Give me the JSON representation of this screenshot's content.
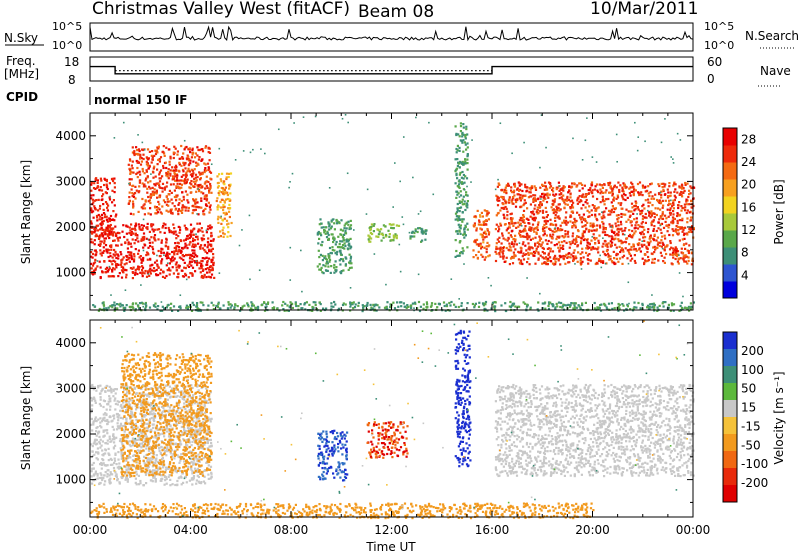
{
  "header": {
    "station": "Christmas Valley West (fitACF)",
    "beam": "Beam 08",
    "date": "10/Mar/2011"
  },
  "colors": {
    "power_scale": [
      "#0000dd",
      "#2e55d0",
      "#3d8f77",
      "#5aa84a",
      "#a8c93a",
      "#f2d320",
      "#f7a020",
      "#f46a12",
      "#ee2a0a",
      "#e80000"
    ],
    "velocity_scale": [
      "#1a2fd0",
      "#2f6fc4",
      "#3d8f77",
      "#5cb83c",
      "#c8c8c8",
      "#f5c23a",
      "#f29a1e",
      "#f06812",
      "#e82a0a",
      "#e00000"
    ],
    "ground_scatter": "#c8c8c8"
  },
  "chart_data": [
    {
      "panel": "noise",
      "type": "line",
      "left_label": "N.Sky",
      "right_label": "N.Search",
      "left_ticks": [
        "10^5",
        "10^0"
      ],
      "right_ticks": [
        "10^5",
        "10^0"
      ]
    },
    {
      "panel": "frequency",
      "type": "line",
      "left_label": [
        "Freq.",
        "[MHz]"
      ],
      "right_label": "Nave",
      "left_ticks": [
        18,
        8
      ],
      "right_ticks": [
        60,
        0
      ],
      "series": [
        {
          "name": "Freq.",
          "x": [
            "00:00",
            "01:00",
            "01:00",
            "16:00",
            "16:00",
            "24:00"
          ],
          "values": [
            14,
            14,
            11,
            11,
            14,
            14
          ]
        },
        {
          "name": "Nave",
          "x": [
            "01:00",
            "16:00"
          ],
          "values": [
            26,
            26
          ]
        }
      ]
    },
    {
      "panel": "cpid",
      "label": "CPID",
      "text": "normal 150 IF"
    },
    {
      "panel": "power",
      "type": "heatmap",
      "ylabel": "Slant Range [km]",
      "yticks": [
        1000,
        2000,
        3000,
        4000
      ],
      "ylim": [
        180,
        4500
      ],
      "colorbar": {
        "label": "Power [dB]",
        "ticks": [
          4,
          8,
          12,
          16,
          20,
          24,
          28
        ],
        "range": [
          0,
          30
        ]
      },
      "regions": [
        {
          "t": [
            0.0,
            1.0
          ],
          "r": [
            1800,
            3100
          ],
          "level": 28
        },
        {
          "t": [
            0.0,
            4.9
          ],
          "r": [
            900,
            2100
          ],
          "level": 28
        },
        {
          "t": [
            1.5,
            4.8
          ],
          "r": [
            2300,
            3800
          ],
          "level": 26
        },
        {
          "t": [
            5.0,
            5.6
          ],
          "r": [
            1800,
            3200
          ],
          "level": 20
        },
        {
          "t": [
            9.0,
            10.4
          ],
          "r": [
            1000,
            2200
          ],
          "level": 8
        },
        {
          "t": [
            11.0,
            12.3
          ],
          "r": [
            1700,
            2100
          ],
          "level": 12
        },
        {
          "t": [
            12.6,
            13.4
          ],
          "r": [
            1700,
            2000
          ],
          "level": 8
        },
        {
          "t": [
            14.5,
            15.0
          ],
          "r": [
            1300,
            4300
          ],
          "level": 8
        },
        {
          "t": [
            15.2,
            15.9
          ],
          "r": [
            1300,
            2400
          ],
          "level": 24
        },
        {
          "t": [
            16.1,
            24.0
          ],
          "r": [
            1200,
            3000
          ],
          "level": 26
        },
        {
          "t": [
            0.0,
            24.0
          ],
          "r": [
            180,
            380
          ],
          "level": 8
        }
      ]
    },
    {
      "panel": "velocity",
      "type": "heatmap",
      "ylabel": "Slant Range [km]",
      "xlabel": "Time UT",
      "xticks": [
        "00:00",
        "04:00",
        "08:00",
        "12:00",
        "16:00",
        "20:00",
        "00:00"
      ],
      "yticks": [
        1000,
        2000,
        3000,
        4000
      ],
      "ylim": [
        180,
        4500
      ],
      "colorbar": {
        "label": "Velocity [m s⁻¹]",
        "ticks": [
          200,
          100,
          50,
          15,
          -15,
          -50,
          -100,
          -200
        ]
      },
      "regions": [
        {
          "t": [
            0.0,
            4.8
          ],
          "r": [
            900,
            3100
          ],
          "value": 0
        },
        {
          "t": [
            1.2,
            4.8
          ],
          "r": [
            1100,
            3800
          ],
          "value": -60
        },
        {
          "t": [
            9.0,
            10.2
          ],
          "r": [
            1000,
            2100
          ],
          "value": 150
        },
        {
          "t": [
            11.0,
            12.6
          ],
          "r": [
            1500,
            2300
          ],
          "value": -150
        },
        {
          "t": [
            14.5,
            15.1
          ],
          "r": [
            1300,
            4300
          ],
          "value": 200
        },
        {
          "t": [
            16.1,
            24.0
          ],
          "r": [
            1100,
            3100
          ],
          "value": 0
        },
        {
          "t": [
            0.0,
            20.0
          ],
          "r": [
            180,
            500
          ],
          "value": -60
        }
      ]
    }
  ]
}
